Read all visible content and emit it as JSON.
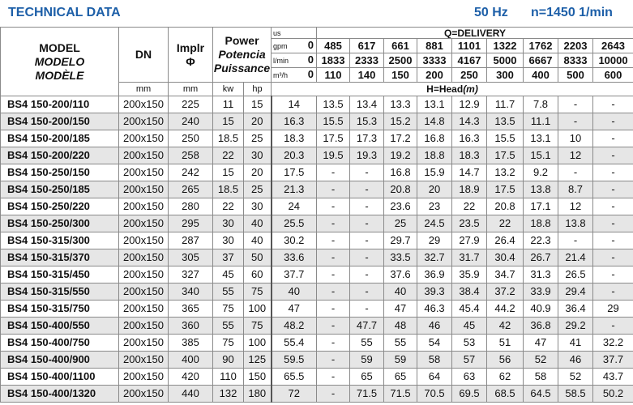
{
  "header": {
    "title": "TECHNICAL DATA",
    "frequency": "50 Hz",
    "speed": "n=1450 1/min"
  },
  "table": {
    "model": [
      "MODEL",
      "MODELO",
      "MODÈLE"
    ],
    "dn": "DN",
    "dn_unit": "mm",
    "impeller": [
      "Implr",
      "Φ"
    ],
    "impeller_unit": "mm",
    "power": [
      "Power",
      "Potencia",
      "Puissance"
    ],
    "kw": "kw",
    "hp": "hp",
    "delivery": "Q=DELIVERY",
    "flow_units": [
      "us",
      "gpm",
      "l/min",
      "m³/h"
    ],
    "zero": [
      0,
      0,
      0
    ],
    "flow": [
      [
        485,
        617,
        661,
        881,
        1101,
        1322,
        1762,
        2203,
        2643
      ],
      [
        1833,
        2333,
        2500,
        3333,
        4167,
        5000,
        6667,
        8333,
        10000
      ],
      [
        110,
        140,
        150,
        200,
        250,
        300,
        400,
        500,
        600
      ]
    ],
    "head": [
      "H=Head",
      "(m)"
    ],
    "rows": [
      [
        "BS4 150-200/110",
        "200x150",
        225,
        11,
        15,
        14,
        13.5,
        13.4,
        13.3,
        13.1,
        12.9,
        11.7,
        7.8,
        "-",
        "-"
      ],
      [
        "BS4 150-200/150",
        "200x150",
        240,
        15,
        20,
        16.3,
        15.5,
        15.3,
        15.2,
        14.8,
        14.3,
        13.5,
        11.1,
        "-",
        "-"
      ],
      [
        "BS4 150-200/185",
        "200x150",
        250,
        18.5,
        25,
        18.3,
        17.5,
        17.3,
        17.2,
        16.8,
        16.3,
        15.5,
        13.1,
        10,
        "-"
      ],
      [
        "BS4 150-200/220",
        "200x150",
        258,
        22,
        30,
        20.3,
        19.5,
        19.3,
        19.2,
        18.8,
        18.3,
        17.5,
        15.1,
        12,
        "-"
      ],
      [
        "BS4 150-250/150",
        "200x150",
        242,
        15,
        20,
        17.5,
        "-",
        "-",
        16.8,
        15.9,
        14.7,
        13.2,
        9.2,
        "-",
        "-"
      ],
      [
        "BS4 150-250/185",
        "200x150",
        265,
        18.5,
        25,
        21.3,
        "-",
        "-",
        20.8,
        20,
        18.9,
        17.5,
        13.8,
        8.7,
        "-"
      ],
      [
        "BS4 150-250/220",
        "200x150",
        280,
        22,
        30,
        24,
        "-",
        "-",
        23.6,
        23,
        22,
        20.8,
        17.1,
        12,
        "-"
      ],
      [
        "BS4 150-250/300",
        "200x150",
        295,
        30,
        40,
        25.5,
        "-",
        "-",
        25,
        24.5,
        23.5,
        22,
        18.8,
        13.8,
        "-"
      ],
      [
        "BS4 150-315/300",
        "200x150",
        287,
        30,
        40,
        30.2,
        "-",
        "-",
        29.7,
        29,
        27.9,
        26.4,
        22.3,
        "-",
        "-"
      ],
      [
        "BS4 150-315/370",
        "200x150",
        305,
        37,
        50,
        33.6,
        "-",
        "-",
        33.5,
        32.7,
        31.7,
        30.4,
        26.7,
        21.4,
        "-"
      ],
      [
        "BS4 150-315/450",
        "200x150",
        327,
        45,
        60,
        37.7,
        "-",
        "-",
        37.6,
        36.9,
        35.9,
        34.7,
        31.3,
        26.5,
        "-"
      ],
      [
        "BS4 150-315/550",
        "200x150",
        340,
        55,
        75,
        40,
        "-",
        "-",
        40,
        39.3,
        38.4,
        37.2,
        33.9,
        29.4,
        "-"
      ],
      [
        "BS4 150-315/750",
        "200x150",
        365,
        75,
        100,
        47,
        "-",
        "-",
        47,
        46.3,
        45.4,
        44.2,
        40.9,
        36.4,
        29
      ],
      [
        "BS4 150-400/550",
        "200x150",
        360,
        55,
        75,
        48.2,
        "-",
        47.7,
        48,
        46,
        45,
        42,
        36.8,
        29.2,
        "-"
      ],
      [
        "BS4 150-400/750",
        "200x150",
        385,
        75,
        100,
        55.4,
        "-",
        55,
        55,
        54,
        53,
        51,
        47,
        41,
        32.2
      ],
      [
        "BS4 150-400/900",
        "200x150",
        400,
        90,
        125,
        59.5,
        "-",
        59,
        59,
        58,
        57,
        56,
        52,
        46,
        37.7
      ],
      [
        "BS4 150-400/1100",
        "200x150",
        420,
        110,
        150,
        65.5,
        "-",
        65,
        65,
        64,
        63,
        62,
        58,
        52,
        43.7
      ],
      [
        "BS4 150-400/1320",
        "200x150",
        440,
        132,
        180,
        72,
        "-",
        71.5,
        71.5,
        70.5,
        69.5,
        68.5,
        64.5,
        58.5,
        50.2
      ]
    ]
  }
}
